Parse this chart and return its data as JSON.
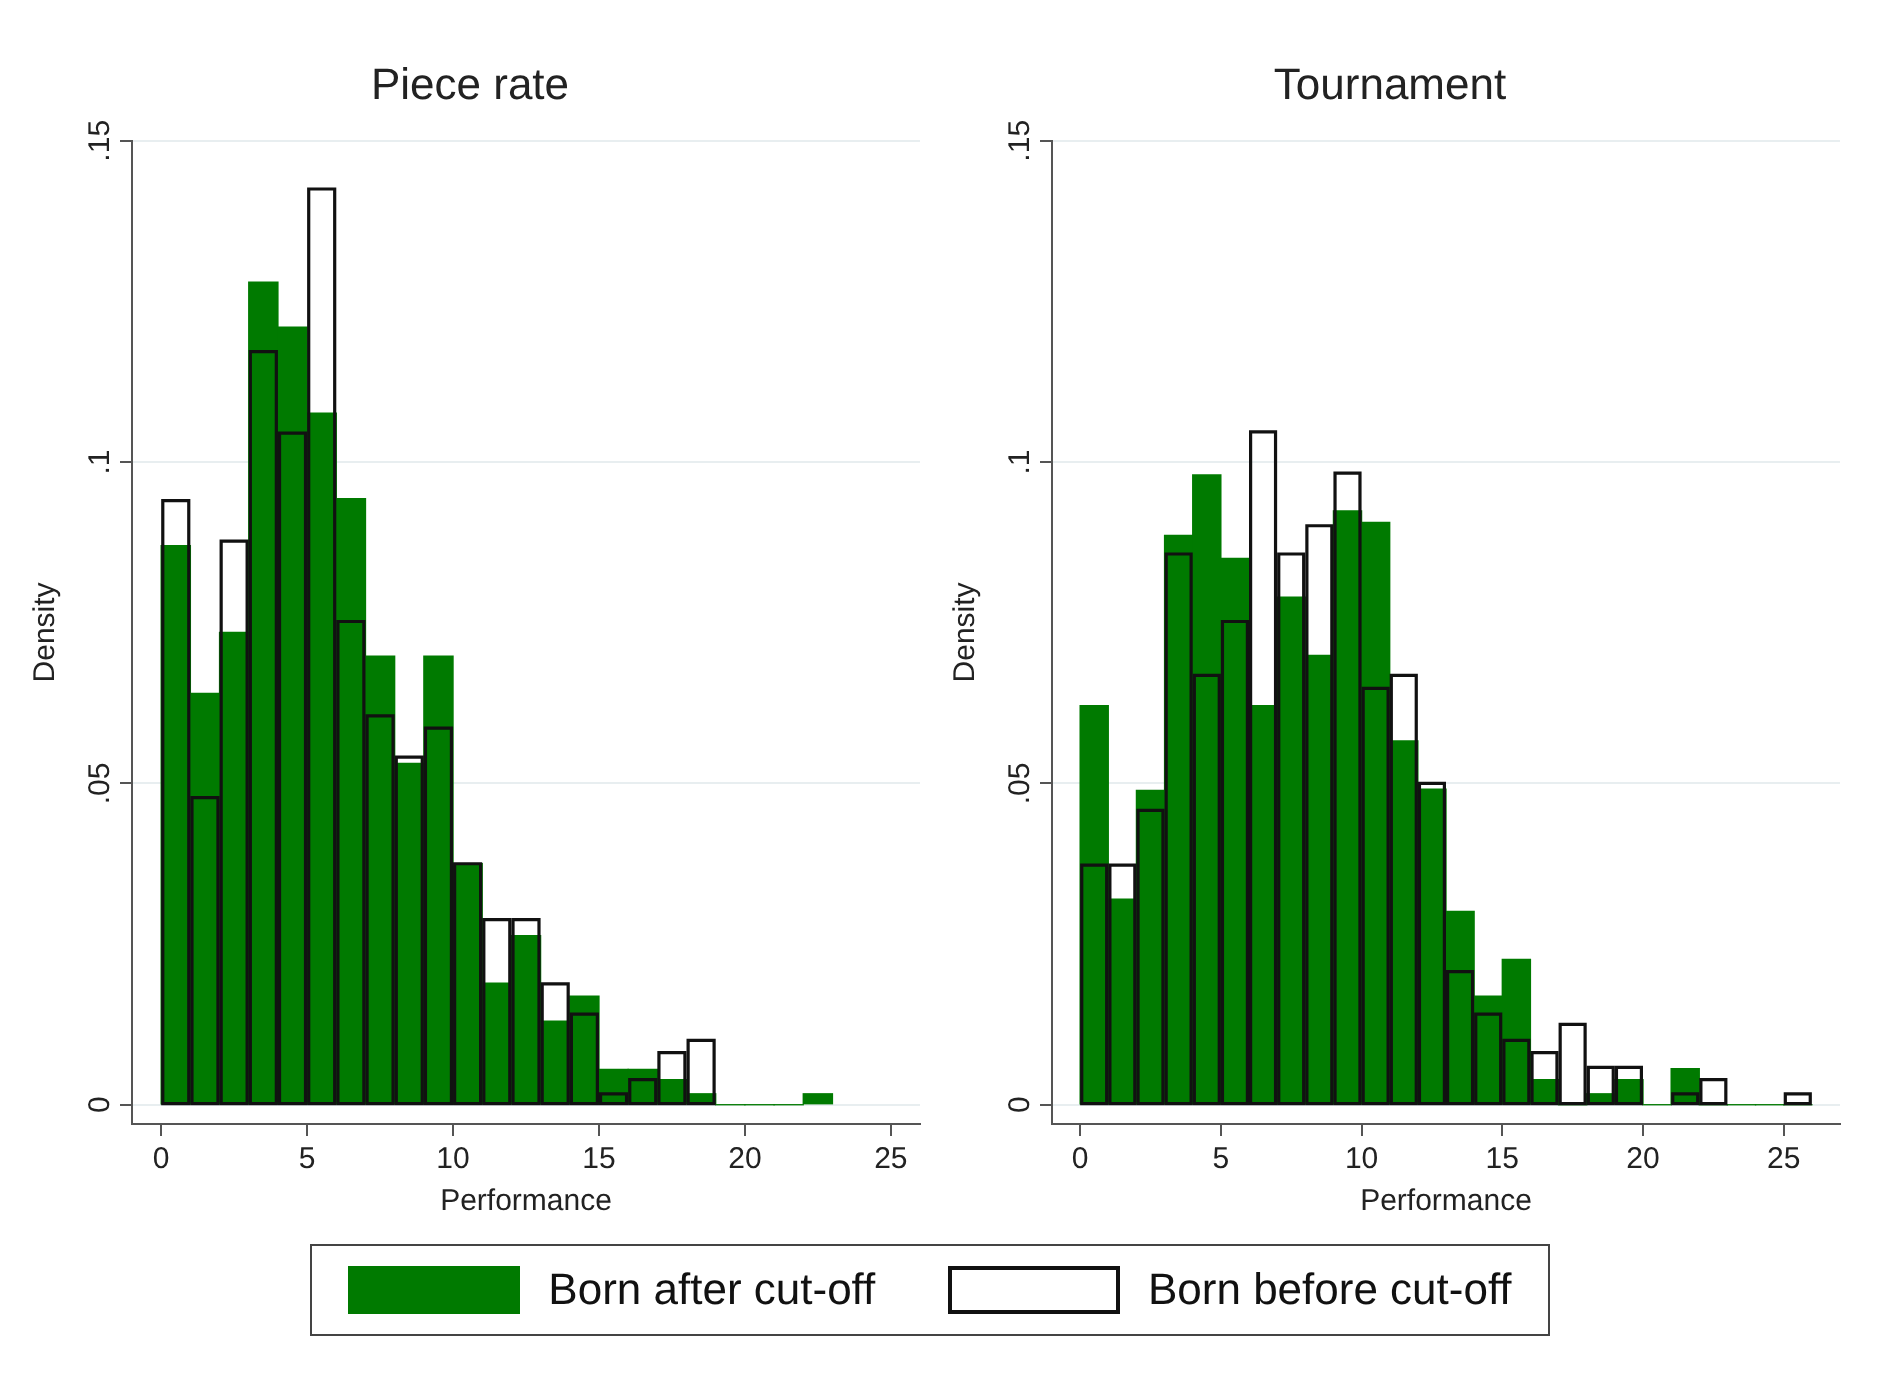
{
  "chart_data": [
    {
      "type": "histogram",
      "title": "Piece rate",
      "xlabel": "Performance",
      "ylabel": "Density",
      "bins": [
        0,
        1,
        2,
        3,
        4,
        5,
        6,
        7,
        8,
        9,
        10,
        11,
        12,
        13,
        14,
        15,
        16,
        17,
        18,
        19,
        20,
        21,
        22,
        23
      ],
      "series": [
        {
          "name": "Born after cut-off",
          "color": "#007a00",
          "values": [
            0.087,
            0.064,
            0.0735,
            0.128,
            0.121,
            0.1076,
            0.0943,
            0.0698,
            0.0531,
            0.0698,
            0.0375,
            0.0189,
            0.0263,
            0.013,
            0.0169,
            0.0055,
            0.0055,
            0.0039,
            0.0017,
            0,
            0,
            0,
            0.0017
          ]
        },
        {
          "name": "Born before cut-off",
          "color": "#111111",
          "values": [
            0.094,
            0.0478,
            0.0877,
            0.1172,
            0.1045,
            0.1425,
            0.0752,
            0.0605,
            0.0541,
            0.0586,
            0.0375,
            0.0288,
            0.0288,
            0.0188,
            0.0141,
            0.0017,
            0.0039,
            0.0081,
            0.01,
            0,
            0,
            0,
            0
          ]
        }
      ],
      "xlim": [
        -1,
        26
      ],
      "xticks": [
        0,
        5,
        10,
        15,
        20,
        25
      ],
      "ylim": [
        -0.003,
        0.15
      ],
      "yticks": [
        {
          "value": 0,
          "label": "0"
        },
        {
          "value": 0.05,
          "label": ".05"
        },
        {
          "value": 0.1,
          "label": ".1"
        },
        {
          "value": 0.15,
          "label": ".15"
        }
      ],
      "grid": "y",
      "legend": "bottom"
    },
    {
      "type": "histogram",
      "title": "Tournament",
      "xlabel": "Performance",
      "ylabel": "Density",
      "bins": [
        0,
        1,
        2,
        3,
        4,
        5,
        6,
        7,
        8,
        9,
        10,
        11,
        12,
        13,
        14,
        15,
        16,
        17,
        18,
        19,
        20,
        21,
        22,
        23,
        24,
        25,
        26
      ],
      "series": [
        {
          "color": "#007a00",
          "values": [
            0.0621,
            0.032,
            0.0489,
            0.0886,
            0.098,
            0.085,
            0.0621,
            0.079,
            0.0699,
            0.0924,
            0.0906,
            0.0566,
            0.0491,
            0.0301,
            0.0169,
            0.0226,
            0.0039,
            0,
            0.0017,
            0.0039,
            0,
            0.0056,
            0,
            0,
            0,
            0
          ]
        },
        {
          "color": "#111111",
          "values": [
            0.0373,
            0.0373,
            0.0458,
            0.0857,
            0.0668,
            0.0752,
            0.1047,
            0.0857,
            0.0901,
            0.0983,
            0.0648,
            0.0668,
            0.05,
            0.0207,
            0.0141,
            0.01,
            0.0081,
            0.0125,
            0.0058,
            0.0058,
            0,
            0.0017,
            0.0039,
            0,
            0,
            0.0017
          ]
        }
      ],
      "xlim": [
        -1,
        27
      ],
      "xticks": [
        0,
        5,
        10,
        15,
        20,
        25
      ],
      "ylim": [
        -0.003,
        0.15
      ],
      "yticks": [
        {
          "value": 0,
          "label": "0"
        },
        {
          "value": 0.05,
          "label": ".05"
        },
        {
          "value": 0.1,
          "label": ".1"
        },
        {
          "value": 0.15,
          "label": ".15"
        }
      ],
      "grid": "y"
    }
  ]
}
